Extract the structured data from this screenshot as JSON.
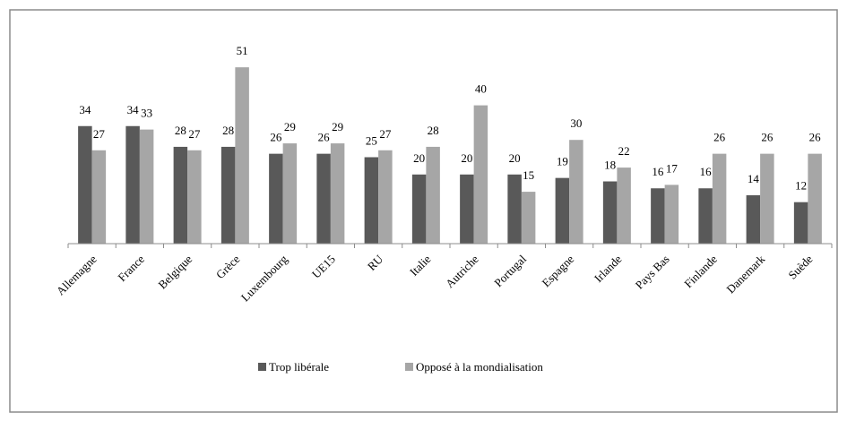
{
  "chart_data": {
    "type": "bar",
    "categories": [
      "Allemagne",
      "France",
      "Belgique",
      "Grèce",
      "Luxembourg",
      "UE15",
      "RU",
      "Italie",
      "Autriche",
      "Portugal",
      "Espagne",
      "Irlande",
      "Pays Bas",
      "Finlande",
      "Danemark",
      "Suède"
    ],
    "series": [
      {
        "name": "Trop libérale",
        "color": "#595959",
        "values": [
          34,
          34,
          28,
          28,
          26,
          26,
          25,
          20,
          20,
          20,
          19,
          18,
          16,
          16,
          14,
          12
        ]
      },
      {
        "name": "Opposé à la mondialisation",
        "color": "#a6a6a6",
        "values": [
          27,
          33,
          27,
          51,
          29,
          29,
          27,
          28,
          40,
          15,
          30,
          22,
          17,
          26,
          26,
          26
        ]
      }
    ],
    "legend": "bottom"
  }
}
